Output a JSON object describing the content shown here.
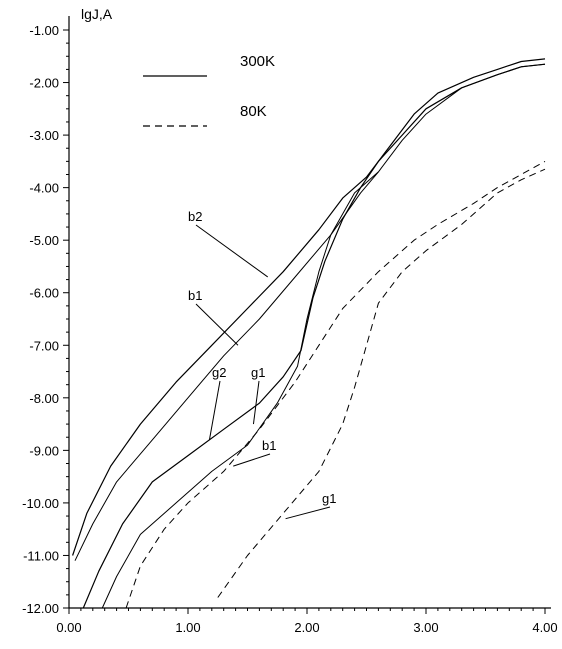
{
  "chart_data": {
    "type": "line",
    "ylabel": "lgJ,A",
    "xlabel": "",
    "xlim": [
      0,
      4
    ],
    "ylim": [
      -12,
      -1
    ],
    "x_ticks": [
      "0.00",
      "1.00",
      "2.00",
      "3.00",
      "4.00"
    ],
    "y_ticks": [
      "-1.00",
      "-2.00",
      "-3.00",
      "-4.00",
      "-5.00",
      "-6.00",
      "-7.00",
      "-8.00",
      "-9.00",
      "-10.00",
      "-11.00",
      "-12.00"
    ],
    "grid": false,
    "legend": {
      "placement": "top-left",
      "entries": [
        {
          "label": "300K",
          "style": "solid"
        },
        {
          "label": "80K",
          "style": "dashed"
        }
      ]
    },
    "series": [
      {
        "style": "solid",
        "stroke": 1.2,
        "x": [
          0.03,
          0.15,
          0.35,
          0.6,
          0.9,
          1.2,
          1.5,
          1.8,
          2.1,
          2.3,
          2.5,
          2.7,
          2.9,
          3.1,
          3.4,
          3.6,
          3.8,
          4.0
        ],
        "y": [
          -11.0,
          -10.2,
          -9.3,
          -8.5,
          -7.7,
          -7.0,
          -6.3,
          -5.6,
          -4.8,
          -4.2,
          -3.8,
          -3.2,
          -2.6,
          -2.2,
          -1.9,
          -1.75,
          -1.6,
          -1.55
        ]
      },
      {
        "style": "solid",
        "stroke": 1.0,
        "x": [
          0.05,
          0.2,
          0.4,
          0.7,
          1.0,
          1.3,
          1.6,
          1.9,
          2.2,
          2.45,
          2.6,
          2.8,
          3.0,
          3.3,
          3.6,
          3.8,
          4.0
        ],
        "y": [
          -11.1,
          -10.4,
          -9.6,
          -8.8,
          -8.0,
          -7.2,
          -6.5,
          -5.7,
          -4.9,
          -4.1,
          -3.7,
          -3.1,
          -2.6,
          -2.1,
          -1.85,
          -1.7,
          -1.65
        ]
      },
      {
        "style": "solid",
        "stroke": 1.2,
        "x": [
          0.12,
          0.25,
          0.45,
          0.7,
          1.0,
          1.3,
          1.6,
          1.8,
          1.95,
          2.05,
          2.15,
          2.3,
          2.45,
          2.6,
          2.8,
          3.0,
          3.3,
          3.6,
          3.8,
          4.0
        ],
        "y": [
          -12.0,
          -11.3,
          -10.4,
          -9.6,
          -9.1,
          -8.6,
          -8.1,
          -7.6,
          -7.1,
          -6.1,
          -5.4,
          -4.6,
          -4.0,
          -3.5,
          -3.0,
          -2.5,
          -2.1,
          -1.85,
          -1.7,
          -1.65
        ]
      },
      {
        "style": "solid",
        "stroke": 1.0,
        "x": [
          0.28,
          0.4,
          0.6,
          0.9,
          1.2,
          1.5,
          1.75,
          1.92,
          2.0,
          2.1,
          2.2,
          2.4,
          2.6
        ],
        "y": [
          -12.0,
          -11.4,
          -10.6,
          -10.0,
          -9.4,
          -8.9,
          -8.1,
          -7.4,
          -6.5,
          -5.6,
          -4.9,
          -4.1,
          -3.7
        ]
      },
      {
        "style": "dashed",
        "stroke": 1.0,
        "x": [
          0.48,
          0.6,
          0.8,
          1.0,
          1.3,
          1.6,
          1.9,
          2.1,
          2.3,
          2.6,
          2.9,
          3.1,
          3.4,
          3.6,
          3.8,
          4.0
        ],
        "y": [
          -12.0,
          -11.2,
          -10.5,
          -10.0,
          -9.4,
          -8.6,
          -7.7,
          -7.0,
          -6.3,
          -5.6,
          -5.0,
          -4.7,
          -4.3,
          -4.0,
          -3.75,
          -3.5
        ]
      },
      {
        "style": "dashed",
        "stroke": 1.0,
        "x": [
          1.25,
          1.5,
          1.8,
          2.1,
          2.3,
          2.4,
          2.5,
          2.6,
          2.8,
          3.0,
          3.3,
          3.6,
          3.8,
          4.0
        ],
        "y": [
          -11.8,
          -11.0,
          -10.2,
          -9.4,
          -8.5,
          -7.8,
          -7.0,
          -6.2,
          -5.6,
          -5.2,
          -4.7,
          -4.1,
          -3.85,
          -3.65
        ]
      }
    ],
    "annotations": [
      {
        "text": "b2",
        "point": [
          1.67,
          -5.7
        ]
      },
      {
        "text": "b1",
        "point": [
          1.42,
          -7.0
        ]
      },
      {
        "text": "g2",
        "point": [
          1.18,
          -8.8
        ]
      },
      {
        "text": "g1",
        "point": [
          1.55,
          -8.5
        ]
      },
      {
        "text": "b1",
        "point": [
          1.38,
          -9.3
        ]
      },
      {
        "text": "g1",
        "point": [
          1.82,
          -10.3
        ]
      }
    ]
  }
}
